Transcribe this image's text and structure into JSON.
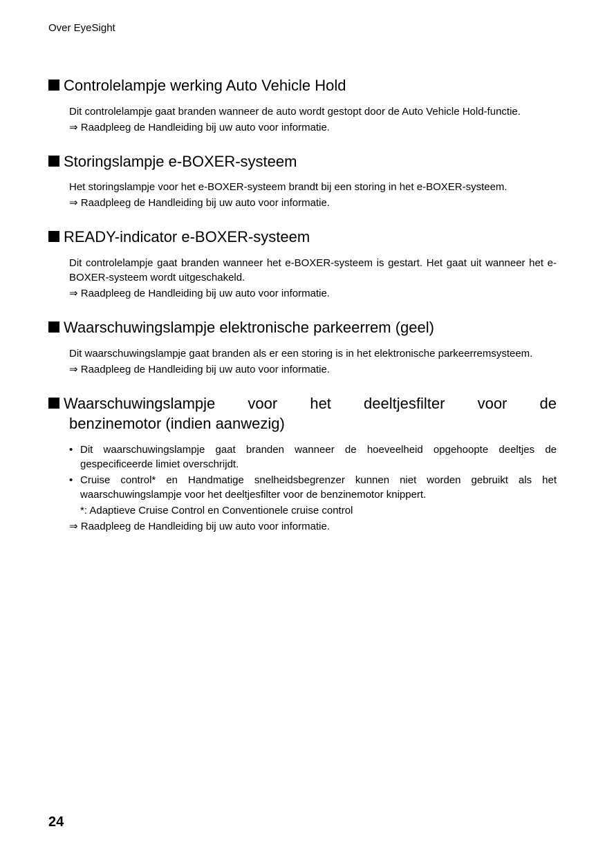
{
  "header": {
    "title": "Over EyeSight"
  },
  "sections": [
    {
      "heading": "Controlelampje werking Auto Vehicle Hold",
      "body": [
        {
          "type": "p-justify",
          "text": "Dit controlelampje gaat branden wanneer de auto wordt gestopt door de Auto Vehicle Hold-functie."
        },
        {
          "type": "arrow",
          "text": "⇒ Raadpleeg de Handleiding bij uw auto voor informatie."
        }
      ]
    },
    {
      "heading": "Storingslampje e-BOXER-systeem",
      "body": [
        {
          "type": "p-left",
          "text": "Het storingslampje voor het e-BOXER-systeem brandt bij een storing in het e-BOXER-systeem."
        },
        {
          "type": "arrow",
          "text": "⇒ Raadpleeg de Handleiding bij uw auto voor informatie."
        }
      ]
    },
    {
      "heading": "READY-indicator e-BOXER-systeem",
      "body": [
        {
          "type": "p-justify",
          "text": "Dit controlelampje gaat branden wanneer het e-BOXER-systeem is gestart. Het gaat uit wanneer het e-BOXER-systeem wordt uitgeschakeld."
        },
        {
          "type": "arrow",
          "text": "⇒ Raadpleeg de Handleiding bij uw auto voor informatie."
        }
      ]
    },
    {
      "heading": "Waarschuwingslampje elektronische parkeerrem (geel)",
      "body": [
        {
          "type": "p-justify",
          "text": "Dit waarschuwingslampje gaat branden als er een storing is in het elektronische parkeerremsysteem."
        },
        {
          "type": "arrow",
          "text": "⇒ Raadpleeg de Handleiding bij uw auto voor informatie."
        }
      ]
    },
    {
      "heading_line1": "Waarschuwingslampje voor het deeltjesfilter voor de",
      "heading_line2": "benzinemotor (indien aanwezig)",
      "justified": true,
      "body": [
        {
          "type": "bullet",
          "text": "Dit waarschuwingslampje gaat branden wanneer de hoeveelheid opgehoopte deeltjes de gespecificeerde limiet overschrijdt."
        },
        {
          "type": "bullet",
          "text": "Cruise control* en Handmatige snelheidsbegrenzer kunnen niet worden gebruikt als het waarschuwingslampje voor het deeltjesfilter voor de benzinemotor knippert."
        },
        {
          "type": "footnote",
          "text": "*: Adaptieve Cruise Control en Conventionele cruise control"
        },
        {
          "type": "arrow",
          "text": "⇒ Raadpleeg de Handleiding bij uw auto voor informatie."
        }
      ]
    }
  ],
  "pageNumber": "24"
}
